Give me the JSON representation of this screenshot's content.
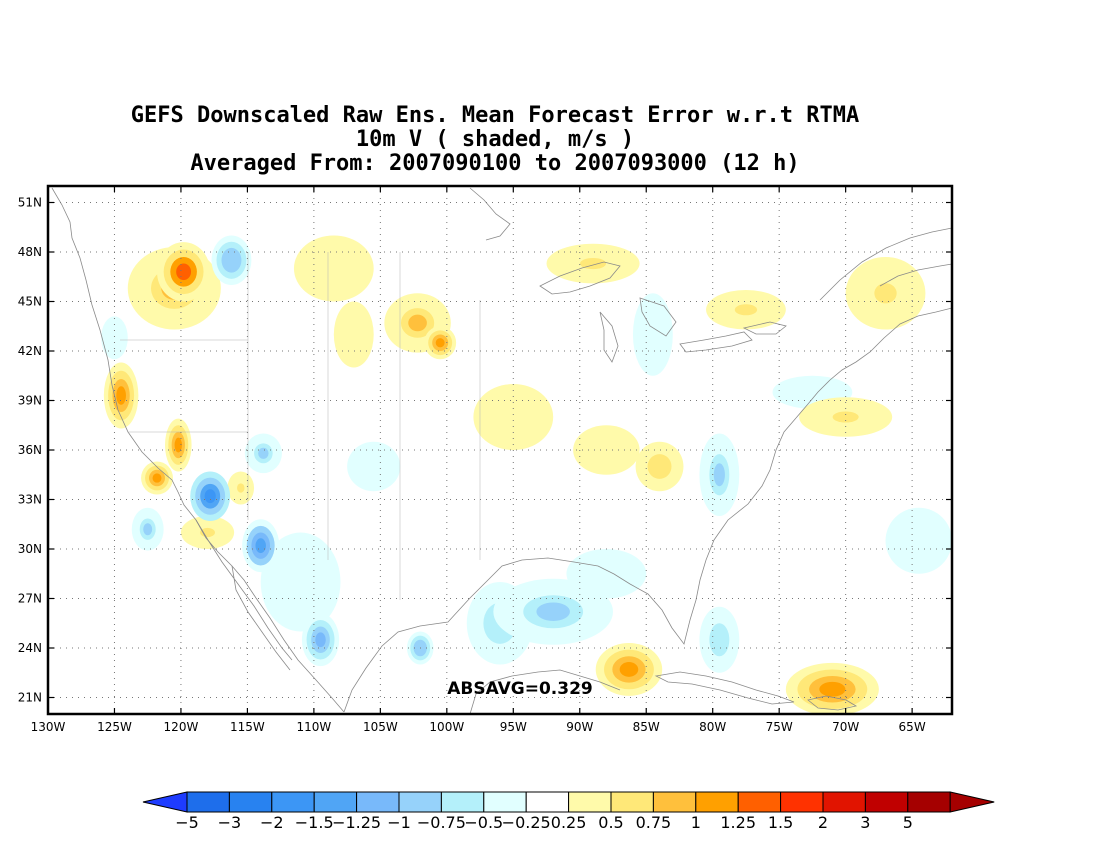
{
  "title": {
    "line1": "GEFS Downscaled Raw Ens. Mean Forecast Error w.r.t RTMA",
    "line2": "10m V ( shaded, m/s )",
    "line3": "Averaged From: 2007090100 to 2007093000 (12 h)"
  },
  "map": {
    "lon_range": [
      -130,
      -62
    ],
    "lat_range": [
      20,
      52
    ],
    "lat_ticks": [
      {
        "value": 51,
        "label": "51N"
      },
      {
        "value": 48,
        "label": "48N"
      },
      {
        "value": 45,
        "label": "45N"
      },
      {
        "value": 42,
        "label": "42N"
      },
      {
        "value": 39,
        "label": "39N"
      },
      {
        "value": 36,
        "label": "36N"
      },
      {
        "value": 33,
        "label": "33N"
      },
      {
        "value": 30,
        "label": "30N"
      },
      {
        "value": 27,
        "label": "27N"
      },
      {
        "value": 24,
        "label": "24N"
      },
      {
        "value": 21,
        "label": "21N"
      }
    ],
    "lon_ticks": [
      {
        "value": -130,
        "label": "130W"
      },
      {
        "value": -125,
        "label": "125W"
      },
      {
        "value": -120,
        "label": "120W"
      },
      {
        "value": -115,
        "label": "115W"
      },
      {
        "value": -110,
        "label": "110W"
      },
      {
        "value": -105,
        "label": "105W"
      },
      {
        "value": -100,
        "label": "100W"
      },
      {
        "value": -95,
        "label": "95W"
      },
      {
        "value": -90,
        "label": "90W"
      },
      {
        "value": -85,
        "label": "85W"
      },
      {
        "value": -80,
        "label": "80W"
      },
      {
        "value": -75,
        "label": "75W"
      },
      {
        "value": -70,
        "label": "70W"
      },
      {
        "value": -65,
        "label": "65W"
      }
    ],
    "grid": true,
    "absavg_text": "ABSAVG=0.329",
    "features": [
      {
        "lon": -119.8,
        "lat": 46.8,
        "rx": 2.0,
        "ry": 1.8,
        "v": 1.25
      },
      {
        "lon": -120.5,
        "lat": 45.8,
        "rx": 3.5,
        "ry": 2.5,
        "v": 0.75
      },
      {
        "lon": -124.5,
        "lat": 39.3,
        "rx": 1.3,
        "ry": 2.0,
        "v": 1.0
      },
      {
        "lon": -120.2,
        "lat": 36.3,
        "rx": 1.0,
        "ry": 1.6,
        "v": 1.0
      },
      {
        "lon": -121.8,
        "lat": 34.3,
        "rx": 1.2,
        "ry": 1.0,
        "v": 1.0
      },
      {
        "lon": -102.2,
        "lat": 43.7,
        "rx": 2.5,
        "ry": 1.8,
        "v": 0.9
      },
      {
        "lon": -100.5,
        "lat": 42.5,
        "rx": 1.2,
        "ry": 1.0,
        "v": 1.0
      },
      {
        "lon": -89.0,
        "lat": 47.3,
        "rx": 3.5,
        "ry": 1.2,
        "v": 0.6
      },
      {
        "lon": -86.3,
        "lat": 22.7,
        "rx": 2.5,
        "ry": 1.6,
        "v": 1.2
      },
      {
        "lon": -71.0,
        "lat": 21.5,
        "rx": 3.5,
        "ry": 1.6,
        "v": 1.1
      },
      {
        "lon": -84.0,
        "lat": 35.0,
        "rx": 1.8,
        "ry": 1.5,
        "v": 0.7
      },
      {
        "lon": -77.5,
        "lat": 44.5,
        "rx": 3.0,
        "ry": 1.2,
        "v": 0.5
      },
      {
        "lon": -67.0,
        "lat": 45.5,
        "rx": 3.0,
        "ry": 2.2,
        "v": 0.5
      },
      {
        "lon": -70.0,
        "lat": 38.0,
        "rx": 3.5,
        "ry": 1.2,
        "v": 0.6
      },
      {
        "lon": -115.5,
        "lat": 33.7,
        "rx": 1.0,
        "ry": 1.0,
        "v": 0.6
      },
      {
        "lon": -118.0,
        "lat": 31.0,
        "rx": 2.0,
        "ry": 1.0,
        "v": 0.6
      },
      {
        "lon": -108.5,
        "lat": 47.0,
        "rx": 3.0,
        "ry": 2.0,
        "v": 0.4
      },
      {
        "lon": -107.0,
        "lat": 43.0,
        "rx": 1.5,
        "ry": 2.0,
        "v": 0.4
      },
      {
        "lon": -95.0,
        "lat": 38.0,
        "rx": 3.0,
        "ry": 2.0,
        "v": 0.35
      },
      {
        "lon": -88.0,
        "lat": 36.0,
        "rx": 2.5,
        "ry": 1.5,
        "v": 0.4
      },
      {
        "lon": -116.2,
        "lat": 47.5,
        "rx": 1.5,
        "ry": 1.5,
        "v": -1.0
      },
      {
        "lon": -117.8,
        "lat": 33.2,
        "rx": 1.5,
        "ry": 1.5,
        "v": -1.8
      },
      {
        "lon": -114.0,
        "lat": 30.2,
        "rx": 1.4,
        "ry": 1.6,
        "v": -1.4
      },
      {
        "lon": -113.8,
        "lat": 35.8,
        "rx": 1.4,
        "ry": 1.2,
        "v": -0.9
      },
      {
        "lon": -109.5,
        "lat": 24.5,
        "rx": 1.4,
        "ry": 1.6,
        "v": -1.1
      },
      {
        "lon": -102.0,
        "lat": 24.0,
        "rx": 1.0,
        "ry": 1.0,
        "v": -1.0
      },
      {
        "lon": -122.5,
        "lat": 31.2,
        "rx": 1.2,
        "ry": 1.3,
        "v": -0.9
      },
      {
        "lon": -125.0,
        "lat": 42.8,
        "rx": 1.0,
        "ry": 1.3,
        "v": -0.5
      },
      {
        "lon": -92.0,
        "lat": 26.2,
        "rx": 4.5,
        "ry": 2.0,
        "v": -0.8
      },
      {
        "lon": -96.0,
        "lat": 25.5,
        "rx": 2.5,
        "ry": 2.5,
        "v": -0.7
      },
      {
        "lon": -88.0,
        "lat": 28.5,
        "rx": 3.0,
        "ry": 1.5,
        "v": -0.5
      },
      {
        "lon": -79.5,
        "lat": 34.5,
        "rx": 1.5,
        "ry": 2.5,
        "v": -0.9
      },
      {
        "lon": -79.5,
        "lat": 24.5,
        "rx": 1.5,
        "ry": 2.0,
        "v": -0.7
      },
      {
        "lon": -72.5,
        "lat": 39.5,
        "rx": 3.0,
        "ry": 1.0,
        "v": -0.5
      },
      {
        "lon": -84.5,
        "lat": 43.0,
        "rx": 1.5,
        "ry": 2.5,
        "v": -0.4
      },
      {
        "lon": -105.5,
        "lat": 35.0,
        "rx": 2.0,
        "ry": 1.5,
        "v": -0.4
      },
      {
        "lon": -111.0,
        "lat": 28.0,
        "rx": 3.0,
        "ry": 3.0,
        "v": -0.35
      },
      {
        "lon": -64.5,
        "lat": 30.5,
        "rx": 2.5,
        "ry": 2.0,
        "v": -0.3
      }
    ]
  },
  "colorbar": {
    "labels": [
      "−5",
      "−3",
      "−2",
      "−1.5",
      "−1.25",
      "−1",
      "−0.75",
      "−0.5",
      "−0.25",
      "0.25",
      "0.5",
      "0.75",
      "1",
      "1.25",
      "1.5",
      "2",
      "3",
      "5"
    ],
    "colors": [
      "#1e6eeb",
      "#2882f0",
      "#3c96f5",
      "#50a5f5",
      "#78b9fa",
      "#96d2fa",
      "#b4f0fa",
      "#e1ffff",
      "#ffffff",
      "#fffaaa",
      "#ffe878",
      "#ffc03c",
      "#ffa000",
      "#ff6000",
      "#ff3200",
      "#e11400",
      "#c00000",
      "#a50000"
    ],
    "under_color": "#1e3cff",
    "over_color": "#a50000"
  }
}
